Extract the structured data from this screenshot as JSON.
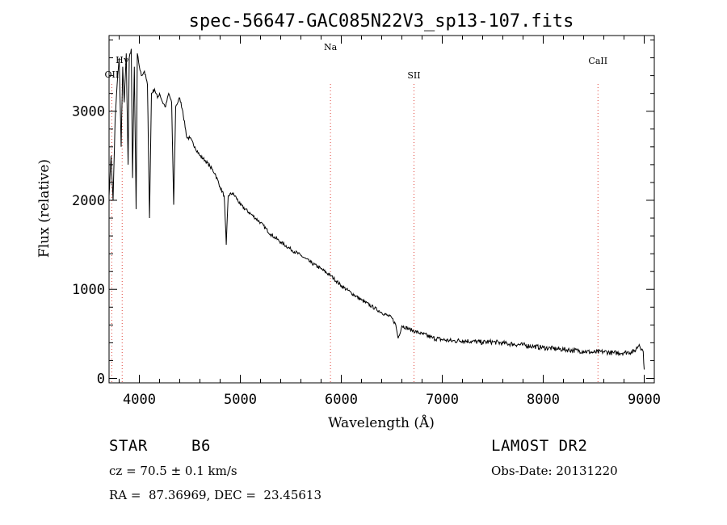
{
  "chart_data": {
    "type": "line",
    "title": "spec-56647-GAC085N22V3_sp13-107.fits",
    "xlabel": "Wavelength (Å)",
    "ylabel": "Flux (relative)",
    "xlim": [
      3700,
      9100
    ],
    "ylim": [
      -50,
      3850
    ],
    "xticks": [
      4000,
      5000,
      6000,
      7000,
      8000,
      9000
    ],
    "yticks": [
      0,
      1000,
      2000,
      3000
    ],
    "grid": false,
    "series": [
      {
        "x": [
          3700,
          3720,
          3740,
          3760,
          3780,
          3800,
          3820,
          3835,
          3850,
          3870,
          3889,
          3900,
          3920,
          3933,
          3950,
          3968,
          3980,
          4000,
          4020,
          4050,
          4080,
          4101,
          4120,
          4150,
          4180,
          4200,
          4230,
          4260,
          4290,
          4320,
          4340,
          4360,
          4400,
          4430,
          4471,
          4500,
          4550,
          4600,
          4650,
          4700,
          4750,
          4800,
          4840,
          4861,
          4880,
          4920,
          4960,
          5000,
          5100,
          5200,
          5300,
          5400,
          5500,
          5600,
          5700,
          5800,
          5900,
          6000,
          6100,
          6200,
          6300,
          6400,
          6500,
          6540,
          6563,
          6600,
          6700,
          6800,
          6900,
          7000,
          7100,
          7200,
          7300,
          7400,
          7500,
          7600,
          7700,
          7800,
          7900,
          8000,
          8100,
          8200,
          8300,
          8400,
          8500,
          8600,
          8700,
          8800,
          8900,
          8950,
          8990,
          9000
        ],
        "y": [
          2050,
          2500,
          2000,
          2900,
          3300,
          3600,
          2600,
          3500,
          3100,
          3650,
          2400,
          3600,
          3700,
          2250,
          3500,
          1900,
          3650,
          3500,
          3400,
          3450,
          3300,
          1800,
          3200,
          3250,
          3150,
          3200,
          3100,
          3050,
          3200,
          3100,
          1950,
          3050,
          3150,
          3000,
          2700,
          2700,
          2600,
          2500,
          2450,
          2380,
          2300,
          2150,
          2050,
          1500,
          2050,
          2080,
          2030,
          1950,
          1850,
          1750,
          1620,
          1530,
          1450,
          1380,
          1300,
          1230,
          1150,
          1040,
          960,
          880,
          810,
          740,
          680,
          600,
          450,
          590,
          540,
          500,
          455,
          435,
          420,
          425,
          415,
          405,
          410,
          395,
          385,
          375,
          360,
          345,
          335,
          325,
          315,
          305,
          290,
          300,
          285,
          290,
          300,
          380,
          300,
          100
        ]
      }
    ],
    "annotations": [
      {
        "label": "OII",
        "x": 3727
      },
      {
        "label": "Hγ",
        "x": 3830
      },
      {
        "label": "Na",
        "x": 5893
      },
      {
        "label": "SII",
        "x": 6720
      },
      {
        "label": "CaII",
        "x": 8542
      }
    ],
    "annotation_color": "#e0433a"
  },
  "info": {
    "object_type": "STAR",
    "subclass": "B6",
    "survey": "LAMOST DR2",
    "cz": "cz = 70.5 ± 0.1 km/s",
    "obs_date": "Obs-Date: 20131220",
    "coords": "RA =  87.36969, DEC =  23.45613"
  }
}
